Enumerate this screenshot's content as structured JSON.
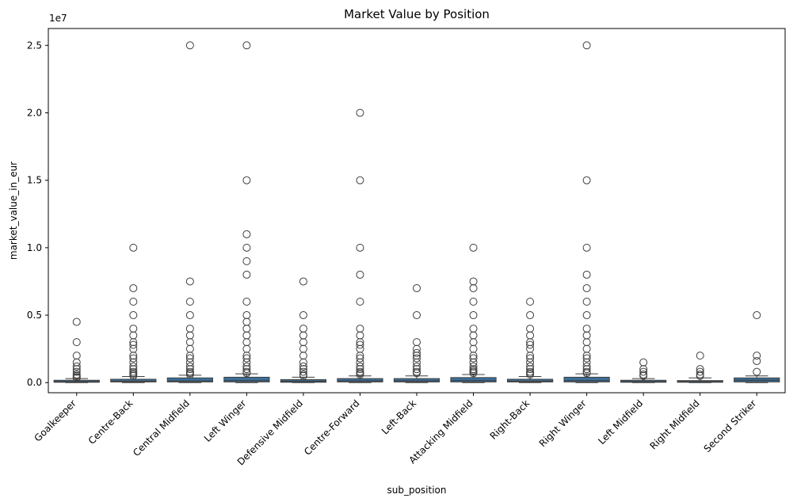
{
  "chart_data": {
    "type": "box",
    "title": "Market Value by Position",
    "xlabel": "sub_position",
    "ylabel": "market_value_in_eur",
    "offset_text": "1e7",
    "ylim": [
      -750000,
      26250000
    ],
    "yticks": [
      0,
      5000000,
      10000000,
      15000000,
      20000000,
      25000000
    ],
    "ytick_labels": [
      "0.0",
      "0.5",
      "1.0",
      "1.5",
      "2.0",
      "2.5"
    ],
    "box_color": "#3a6f9a",
    "grid": false,
    "legend": "none",
    "categories": [
      "Goalkeeper",
      "Centre-Back",
      "Central Midfield",
      "Left Winger",
      "Defensive Midfield",
      "Centre-Forward",
      "Left-Back",
      "Attacking Midfield",
      "Right-Back",
      "Right Winger",
      "Left Midfield",
      "Right Midfield",
      "Second Striker"
    ],
    "boxes": [
      {
        "q1": 25000,
        "median": 75000,
        "q3": 175000,
        "whisker_low": 0,
        "whisker_high": 300000,
        "outliers": [
          4500000,
          3000000,
          2000000,
          1500000,
          1200000,
          1000000,
          800000,
          600000,
          500000,
          400000,
          350000
        ]
      },
      {
        "q1": 50000,
        "median": 100000,
        "q3": 250000,
        "whisker_low": 0,
        "whisker_high": 450000,
        "outliers": [
          10000000,
          7000000,
          6000000,
          5000000,
          4000000,
          3500000,
          3000000,
          2800000,
          2500000,
          2000000,
          1800000,
          1500000,
          1200000,
          1000000,
          800000,
          700000,
          600000,
          500000
        ]
      },
      {
        "q1": 50000,
        "median": 125000,
        "q3": 350000,
        "whisker_low": 0,
        "whisker_high": 550000,
        "outliers": [
          25000000,
          7500000,
          6000000,
          5000000,
          4000000,
          3500000,
          3000000,
          2500000,
          2000000,
          1800000,
          1500000,
          1200000,
          1000000,
          800000,
          700000,
          600000
        ]
      },
      {
        "q1": 50000,
        "median": 150000,
        "q3": 400000,
        "whisker_low": 0,
        "whisker_high": 650000,
        "outliers": [
          25000000,
          15000000,
          11000000,
          10000000,
          9000000,
          8000000,
          6000000,
          5000000,
          4500000,
          4000000,
          3500000,
          3000000,
          2500000,
          2000000,
          1800000,
          1500000,
          1200000,
          1000000,
          800000,
          700000
        ]
      },
      {
        "q1": 25000,
        "median": 100000,
        "q3": 225000,
        "whisker_low": 0,
        "whisker_high": 400000,
        "outliers": [
          7500000,
          5000000,
          4000000,
          3500000,
          3000000,
          2500000,
          2000000,
          1500000,
          1200000,
          1000000,
          800000,
          600000,
          500000
        ]
      },
      {
        "q1": 50000,
        "median": 125000,
        "q3": 300000,
        "whisker_low": 0,
        "whisker_high": 500000,
        "outliers": [
          20000000,
          15000000,
          10000000,
          8000000,
          6000000,
          4000000,
          3500000,
          3000000,
          2800000,
          2500000,
          2000000,
          1800000,
          1500000,
          1200000,
          1000000,
          800000,
          700000,
          600000
        ]
      },
      {
        "q1": 50000,
        "median": 125000,
        "q3": 300000,
        "whisker_low": 0,
        "whisker_high": 500000,
        "outliers": [
          7000000,
          5000000,
          3000000,
          2500000,
          2200000,
          2000000,
          1800000,
          1500000,
          1200000,
          1000000,
          800000,
          700000
        ]
      },
      {
        "q1": 50000,
        "median": 150000,
        "q3": 375000,
        "whisker_low": 0,
        "whisker_high": 600000,
        "outliers": [
          10000000,
          7500000,
          7000000,
          6000000,
          5000000,
          4000000,
          3500000,
          3000000,
          2500000,
          2000000,
          1800000,
          1500000,
          1200000,
          1000000,
          900000,
          800000,
          700000
        ]
      },
      {
        "q1": 50000,
        "median": 100000,
        "q3": 250000,
        "whisker_low": 0,
        "whisker_high": 450000,
        "outliers": [
          6000000,
          5000000,
          4000000,
          3500000,
          3000000,
          2800000,
          2500000,
          2000000,
          1800000,
          1500000,
          1200000,
          1000000,
          800000,
          700000,
          600000
        ]
      },
      {
        "q1": 50000,
        "median": 150000,
        "q3": 400000,
        "whisker_low": 0,
        "whisker_high": 650000,
        "outliers": [
          25000000,
          15000000,
          10000000,
          8000000,
          7000000,
          6000000,
          5000000,
          4000000,
          3500000,
          3000000,
          2500000,
          2000000,
          1800000,
          1500000,
          1200000,
          1000000,
          800000,
          700000
        ]
      },
      {
        "q1": 25000,
        "median": 75000,
        "q3": 175000,
        "whisker_low": 0,
        "whisker_high": 300000,
        "outliers": [
          1500000,
          1000000,
          800000,
          600000,
          500000
        ]
      },
      {
        "q1": 25000,
        "median": 75000,
        "q3": 150000,
        "whisker_low": 0,
        "whisker_high": 350000,
        "outliers": [
          2000000,
          1000000,
          800000,
          600000,
          500000
        ]
      },
      {
        "q1": 50000,
        "median": 175000,
        "q3": 350000,
        "whisker_low": 0,
        "whisker_high": 500000,
        "outliers": [
          5000000,
          2000000,
          1600000,
          800000
        ]
      }
    ]
  }
}
